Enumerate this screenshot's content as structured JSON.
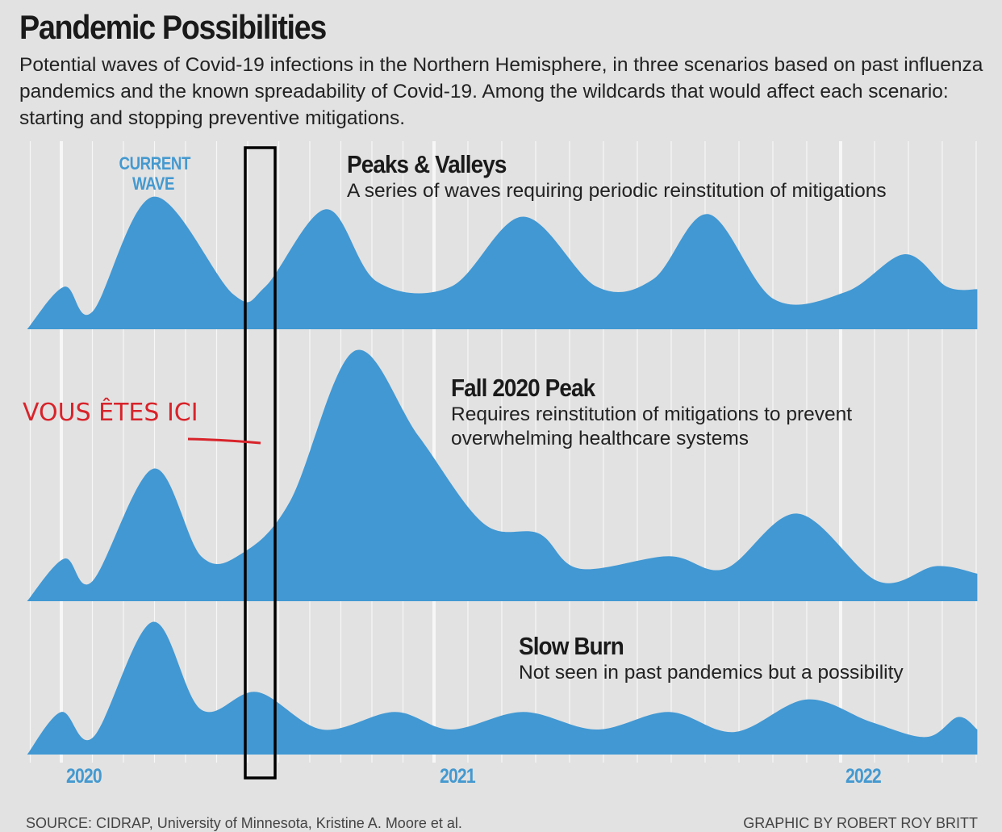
{
  "title": "Pandemic Possibilities",
  "subtitle": "Potential waves of Covid-19 infections in the Northern Hemisphere, in three scenarios based on past influenza pandemics and the known spreadability of Covid-19. Among the wildcards that would affect each scenario: starting and stopping preventive mitigations.",
  "current_wave_label": "CURRENT WAVE",
  "annotation": {
    "text": "VOUS ÊTES ICI",
    "color": "#d8232a",
    "marker_date": "2020-07-01"
  },
  "footer": {
    "source": "SOURCE: CIDRAP, University of Minnesota, Kristine A. Moore et al.",
    "credit": "GRAPHIC BY ROBERT ROY BRITT"
  },
  "chart_data": {
    "type": "area",
    "x_ticks": [
      "2020",
      "2021",
      "2022"
    ],
    "grid": "monthly vertical lines",
    "fill_color": "#4198d3",
    "background": "#e2e2e2",
    "series": [
      {
        "name": "Peaks & Valleys",
        "description": "A series of waves requiring periodic reinstitution of mitigations",
        "points": [
          [
            "2019-11-28",
            0
          ],
          [
            "2020-01-04",
            17
          ],
          [
            "2020-02-01",
            7
          ],
          [
            "2020-03-30",
            53
          ],
          [
            "2020-06-17",
            14
          ],
          [
            "2020-07-18",
            17
          ],
          [
            "2020-09-17",
            48
          ],
          [
            "2020-11-06",
            19
          ],
          [
            "2021-01-16",
            17
          ],
          [
            "2021-03-20",
            45
          ],
          [
            "2021-05-25",
            17
          ],
          [
            "2021-07-15",
            20
          ],
          [
            "2021-09-04",
            46
          ],
          [
            "2021-11-02",
            12
          ],
          [
            "2022-01-06",
            15
          ],
          [
            "2022-02-28",
            30
          ],
          [
            "2022-04-05",
            17
          ],
          [
            "2022-05-02",
            16
          ]
        ]
      },
      {
        "name": "Fall 2020 Peak",
        "description": "Requires reinstitution of mitigations to prevent overwhelming healthcare systems",
        "points": [
          [
            "2019-11-28",
            0
          ],
          [
            "2020-01-04",
            17
          ],
          [
            "2020-02-01",
            8
          ],
          [
            "2020-03-30",
            53
          ],
          [
            "2020-05-16",
            18
          ],
          [
            "2020-06-25",
            19
          ],
          [
            "2020-08-12",
            40
          ],
          [
            "2020-10-14",
            100
          ],
          [
            "2020-12-16",
            66
          ],
          [
            "2021-02-15",
            31
          ],
          [
            "2021-04-04",
            27
          ],
          [
            "2021-05-10",
            13
          ],
          [
            "2021-07-29",
            18
          ],
          [
            "2021-09-19",
            13
          ],
          [
            "2021-11-23",
            35
          ],
          [
            "2022-02-04",
            8
          ],
          [
            "2022-03-25",
            14
          ],
          [
            "2022-05-02",
            11
          ]
        ]
      },
      {
        "name": "Slow Burn",
        "description": "Not seen in past pandemics but a possibility",
        "points": [
          [
            "2019-11-28",
            0
          ],
          [
            "2019-12-31",
            17
          ],
          [
            "2020-02-02",
            7
          ],
          [
            "2020-03-29",
            53
          ],
          [
            "2020-05-16",
            18
          ],
          [
            "2020-07-10",
            25
          ],
          [
            "2020-09-13",
            10
          ],
          [
            "2020-11-23",
            17
          ],
          [
            "2021-01-16",
            10
          ],
          [
            "2021-03-20",
            17
          ],
          [
            "2021-05-25",
            10
          ],
          [
            "2021-07-29",
            17
          ],
          [
            "2021-09-27",
            9
          ],
          [
            "2021-12-01",
            22
          ],
          [
            "2022-01-28",
            13
          ],
          [
            "2022-03-17",
            7
          ],
          [
            "2022-04-15",
            15
          ],
          [
            "2022-05-02",
            10
          ]
        ]
      }
    ]
  }
}
